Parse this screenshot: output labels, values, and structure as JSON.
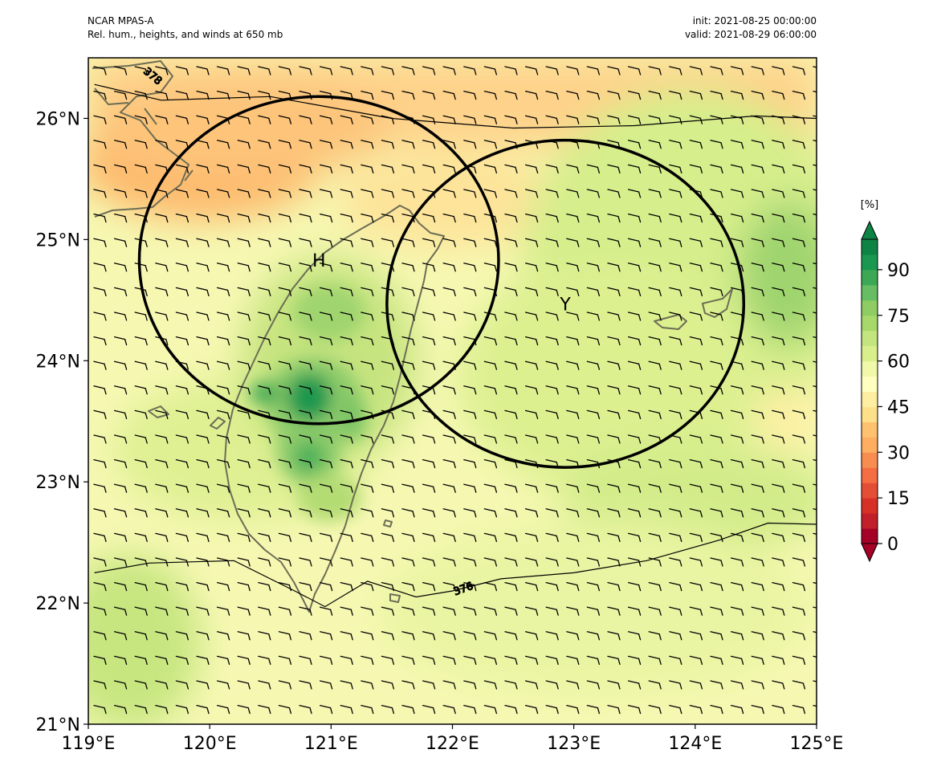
{
  "header": {
    "left_line1": "NCAR MPAS-A",
    "left_line2": "Rel. hum., heights, and winds at 650 mb",
    "right_line1": "init: 2021-08-25 00:00:00",
    "right_line2": "valid: 2021-08-29 06:00:00"
  },
  "map": {
    "lon_range": [
      119,
      125
    ],
    "lat_range": [
      21,
      26.5
    ],
    "x_ticks": [
      "119°E",
      "120°E",
      "121°E",
      "122°E",
      "123°E",
      "124°E",
      "125°E"
    ],
    "x_tick_values": [
      119,
      120,
      121,
      122,
      123,
      124,
      125
    ],
    "y_ticks": [
      "21°N",
      "22°N",
      "23°N",
      "24°N",
      "25°N",
      "26°N"
    ],
    "y_tick_values": [
      21,
      22,
      23,
      24,
      25,
      26
    ],
    "colors": {
      "dry_orange": "#fdae61",
      "light_orange": "#fed28a",
      "pale_yellow": "#f7f9b0",
      "light_green": "#d9ef8b",
      "green": "#b5dc73",
      "mid_green": "#8ccb6a",
      "dark_green": "#1a9850",
      "coast": "#6d6d55"
    },
    "circles": [
      {
        "label": "H",
        "center_lon": 120.9,
        "center_lat": 24.83,
        "radius_lon": 1.48,
        "radius_lat": 1.35
      },
      {
        "label": "Y",
        "center_lon": 122.93,
        "center_lat": 24.47,
        "radius_lon": 1.47,
        "radius_lat": 1.35
      }
    ],
    "height_contours": [
      {
        "label": "378",
        "points": [
          [
            119.05,
            26.28
          ],
          [
            119.6,
            26.15
          ],
          [
            120.5,
            26.18
          ],
          [
            121.5,
            26.0
          ],
          [
            122.5,
            25.92
          ],
          [
            123.5,
            25.94
          ],
          [
            124.5,
            26.02
          ],
          [
            125.0,
            26.0
          ]
        ]
      },
      {
        "label": "376",
        "points": [
          [
            119.05,
            22.25
          ],
          [
            119.5,
            22.33
          ],
          [
            120.2,
            22.35
          ],
          [
            120.7,
            22.1
          ],
          [
            120.95,
            21.97
          ],
          [
            121.3,
            22.18
          ],
          [
            121.7,
            22.05
          ],
          [
            122.0,
            22.1
          ],
          [
            122.4,
            22.2
          ],
          [
            123.0,
            22.25
          ],
          [
            123.6,
            22.35
          ],
          [
            124.2,
            22.52
          ],
          [
            124.6,
            22.66
          ],
          [
            125.0,
            22.65
          ]
        ]
      }
    ]
  },
  "colorbar": {
    "unit": "[%]",
    "tick_labels": [
      "0",
      "15",
      "30",
      "45",
      "60",
      "75",
      "90"
    ],
    "tick_values": [
      0,
      15,
      30,
      45,
      60,
      75,
      90
    ],
    "min": 0,
    "max": 100,
    "colors": [
      "#a50026",
      "#c1202a",
      "#d73027",
      "#e54e36",
      "#f46d43",
      "#f88d52",
      "#fdae61",
      "#fec16f",
      "#fee08b",
      "#fdeea1",
      "#ffffbf",
      "#f1f8a9",
      "#d9ef8b",
      "#c3e57f",
      "#a6d96a",
      "#8fcc63",
      "#66bd63",
      "#3ca855",
      "#1a9850",
      "#0e8444"
    ]
  }
}
